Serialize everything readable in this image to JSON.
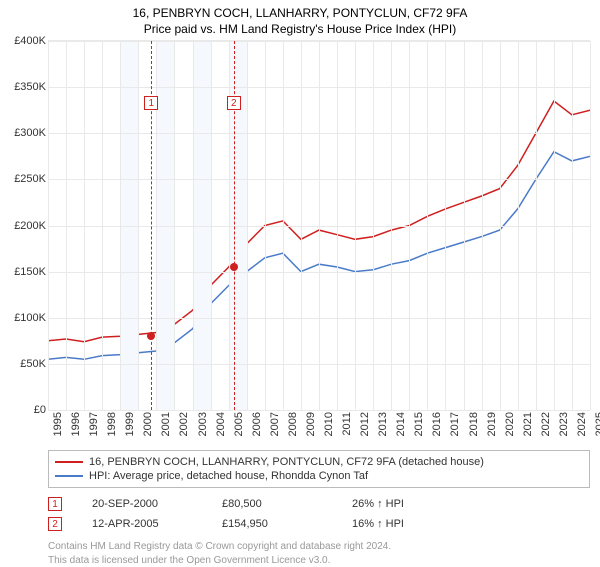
{
  "title": "16, PENBRYN COCH, LLANHARRY, PONTYCLUN, CF72 9FA",
  "subtitle": "Price paid vs. HM Land Registry's House Price Index (HPI)",
  "chart": {
    "type": "line",
    "background_color": "#ffffff",
    "grid_color": "#e9e9e9",
    "band_color": "#f5f8fc",
    "x": {
      "min": 1995,
      "max": 2025,
      "ticks": [
        1995,
        1996,
        1997,
        1998,
        1999,
        2000,
        2001,
        2002,
        2003,
        2004,
        2005,
        2006,
        2007,
        2008,
        2009,
        2010,
        2011,
        2012,
        2013,
        2014,
        2015,
        2016,
        2017,
        2018,
        2019,
        2020,
        2021,
        2022,
        2023,
        2024,
        2025
      ]
    },
    "y": {
      "min": 0,
      "max": 400000,
      "prefix": "£",
      "tick_step": 50000,
      "ticks": [
        0,
        50000,
        100000,
        150000,
        200000,
        250000,
        300000,
        350000,
        400000
      ]
    },
    "bands": [
      [
        1999,
        2000
      ],
      [
        2001,
        2002
      ],
      [
        2003,
        2004
      ],
      [
        2005,
        2006
      ]
    ],
    "series": [
      {
        "name": "16, PENBRYN COCH, LLANHARRY, PONTYCLUN, CF72 9FA (detached house)",
        "color": "#d01f1f",
        "line_width": 1.5,
        "points": [
          [
            1995,
            75000
          ],
          [
            1996,
            77000
          ],
          [
            1997,
            74000
          ],
          [
            1998,
            79000
          ],
          [
            1999,
            80000
          ],
          [
            2000,
            82000
          ],
          [
            2001,
            84000
          ],
          [
            2002,
            93000
          ],
          [
            2003,
            108000
          ],
          [
            2004,
            135000
          ],
          [
            2005,
            155000
          ],
          [
            2006,
            180000
          ],
          [
            2007,
            200000
          ],
          [
            2008,
            205000
          ],
          [
            2009,
            185000
          ],
          [
            2010,
            195000
          ],
          [
            2011,
            190000
          ],
          [
            2012,
            185000
          ],
          [
            2013,
            188000
          ],
          [
            2014,
            195000
          ],
          [
            2015,
            200000
          ],
          [
            2016,
            210000
          ],
          [
            2017,
            218000
          ],
          [
            2018,
            225000
          ],
          [
            2019,
            232000
          ],
          [
            2020,
            240000
          ],
          [
            2021,
            265000
          ],
          [
            2022,
            300000
          ],
          [
            2023,
            335000
          ],
          [
            2024,
            320000
          ],
          [
            2025,
            325000
          ]
        ]
      },
      {
        "name": "HPI: Average price, detached house, Rhondda Cynon Taf",
        "color": "#4a7bc9",
        "line_width": 1.5,
        "points": [
          [
            1995,
            55000
          ],
          [
            1996,
            57000
          ],
          [
            1997,
            55000
          ],
          [
            1998,
            59000
          ],
          [
            1999,
            60000
          ],
          [
            2000,
            62000
          ],
          [
            2001,
            64000
          ],
          [
            2002,
            73000
          ],
          [
            2003,
            88000
          ],
          [
            2004,
            115000
          ],
          [
            2005,
            135000
          ],
          [
            2006,
            150000
          ],
          [
            2007,
            165000
          ],
          [
            2008,
            170000
          ],
          [
            2009,
            150000
          ],
          [
            2010,
            158000
          ],
          [
            2011,
            155000
          ],
          [
            2012,
            150000
          ],
          [
            2013,
            152000
          ],
          [
            2014,
            158000
          ],
          [
            2015,
            162000
          ],
          [
            2016,
            170000
          ],
          [
            2017,
            176000
          ],
          [
            2018,
            182000
          ],
          [
            2019,
            188000
          ],
          [
            2020,
            195000
          ],
          [
            2021,
            218000
          ],
          [
            2022,
            250000
          ],
          [
            2023,
            280000
          ],
          [
            2024,
            270000
          ],
          [
            2025,
            275000
          ]
        ]
      }
    ],
    "markers": [
      {
        "x": 2000.72,
        "y": 80500,
        "color": "#d01f1f"
      },
      {
        "x": 2005.28,
        "y": 154950,
        "color": "#d01f1f"
      }
    ],
    "event_lines": [
      {
        "n": "1",
        "x": 2000.72,
        "box_y": 340000
      },
      {
        "n": "2",
        "x": 2005.28,
        "box_y": 340000
      }
    ]
  },
  "legend": {
    "border_color": "#bbbbbb",
    "items": [
      {
        "color": "#d01f1f",
        "label": "16, PENBRYN COCH, LLANHARRY, PONTYCLUN, CF72 9FA (detached house)"
      },
      {
        "color": "#4a7bc9",
        "label": "HPI: Average price, detached house, Rhondda Cynon Taf"
      }
    ]
  },
  "events": [
    {
      "n": "1",
      "date": "20-SEP-2000",
      "price": "£80,500",
      "delta": "26% ↑ HPI"
    },
    {
      "n": "2",
      "date": "12-APR-2005",
      "price": "£154,950",
      "delta": "16% ↑ HPI"
    }
  ],
  "footnote": {
    "line1": "Contains HM Land Registry data © Crown copyright and database right 2024.",
    "line2": "This data is licensed under the Open Government Licence v3.0."
  },
  "colors": {
    "event": "#d01f1f",
    "text_muted": "#999999"
  }
}
